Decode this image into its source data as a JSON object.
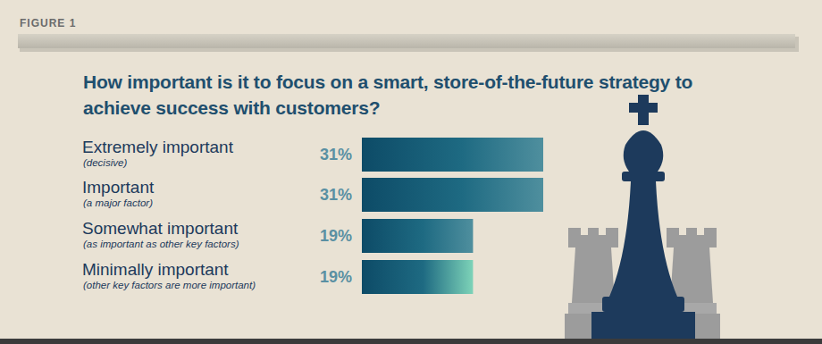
{
  "figure_label": "FIGURE 1",
  "chart_data": {
    "type": "bar",
    "orientation": "horizontal",
    "title": "How important is it to focus on a smart, store-of-the-future strategy to achieve success with customers?",
    "categories": [
      "Extremely important",
      "Important",
      "Somewhat important",
      "Minimally important"
    ],
    "category_notes": [
      "(decisive)",
      "(a major factor)",
      "(as important as other key factors)",
      "(other key factors are more important)"
    ],
    "values": [
      31,
      31,
      19,
      19
    ],
    "value_labels": [
      "31%",
      "31%",
      "19%",
      "19%"
    ],
    "data_labels": true,
    "tick_labels": false,
    "grid": false,
    "colors": [
      "#4f8f9e",
      "#4f8f9e",
      "#4f8f9e",
      "#7dd3b8"
    ]
  }
}
